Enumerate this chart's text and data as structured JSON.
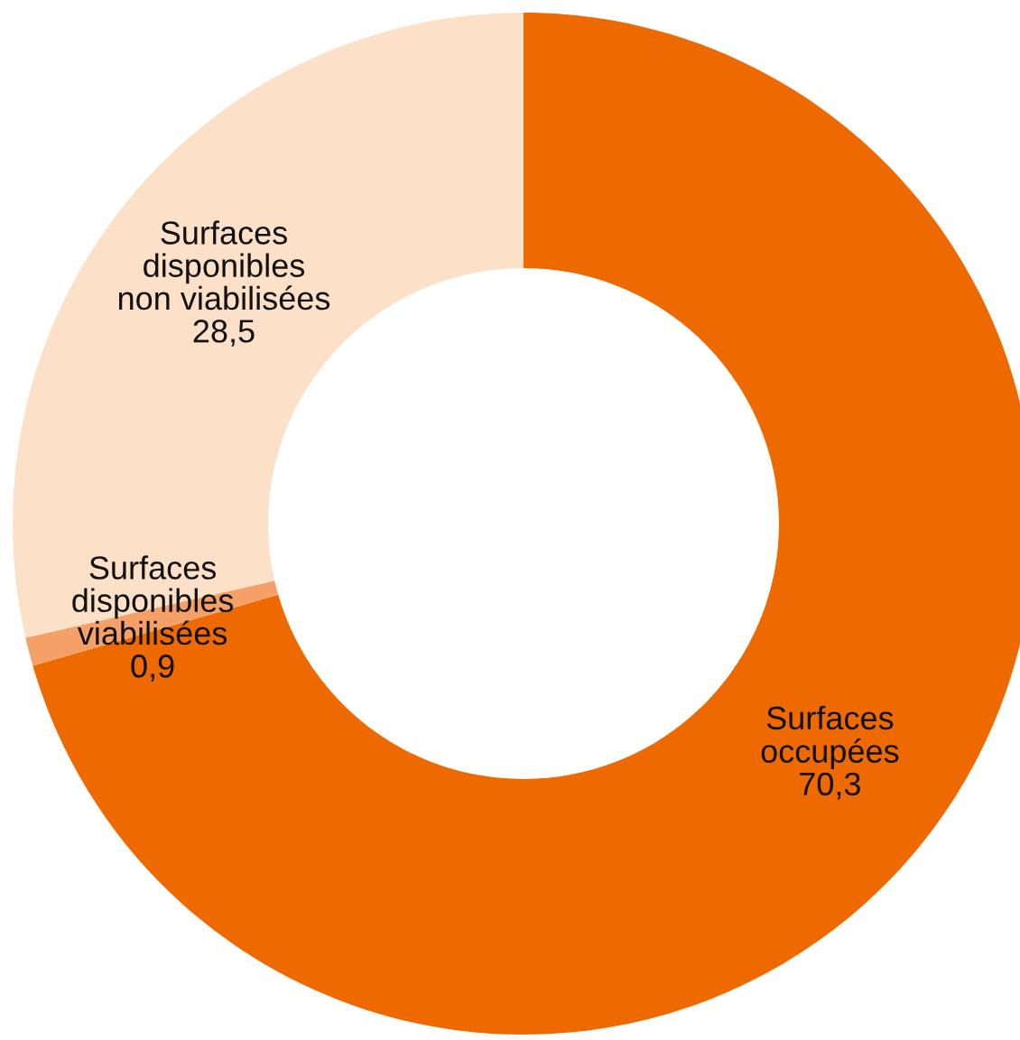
{
  "chart_data": {
    "type": "donut",
    "categories": [
      "Surfaces\noccupées",
      "Surfaces\ndisponibles\nviabilisées",
      "Surfaces\ndisponibles\nnon viabilisées"
    ],
    "values": [
      70.3,
      0.9,
      28.5
    ],
    "value_labels": [
      "70,3",
      "0,9",
      "28,5"
    ],
    "colors": [
      "#ee6a00",
      "#f5a066",
      "#fde0c8"
    ],
    "legend": false
  }
}
